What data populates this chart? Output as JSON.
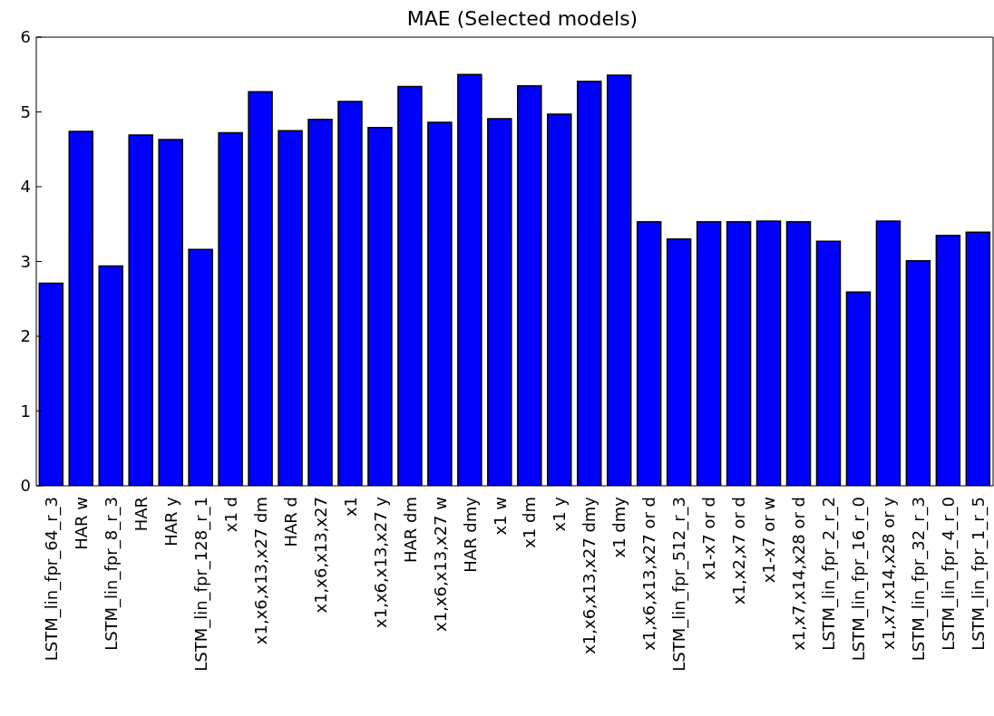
{
  "chart_data": {
    "type": "bar",
    "title": "MAE (Selected models)",
    "categories": [
      "LSTM_lin_fpr_64_r_3",
      "HAR w",
      "LSTM_lin_fpr_8_r_3",
      "HAR",
      "HAR y",
      "LSTM_lin_fpr_128_r_1",
      "x1 d",
      "x1,x6,x13,x27 dm",
      "HAR d",
      "x1,x6,x13,x27",
      "x1",
      "x1,x6,x13,x27 y",
      "HAR dm",
      "x1,x6,x13,x27 w",
      "HAR dmy",
      "x1 w",
      "x1 dm",
      "x1 y",
      "x1,x6,x13,x27 dmy",
      "x1 dmy",
      "x1,x6,x13,x27 or d",
      "LSTM_lin_fpr_512_r_3",
      "x1-x7 or d",
      "x1,x2,x7 or d",
      "x1-x7 or w",
      "x1,x7,x14,x28 or d",
      "LSTM_lin_fpr_2_r_2",
      "LSTM_lin_fpr_16_r_0",
      "x1,x7,x14,x28 or y",
      "LSTM_lin_fpr_32_r_3",
      "LSTM_lin_fpr_4_r_0",
      "LSTM_lin_fpr_1_r_5"
    ],
    "values": [
      2.71,
      4.74,
      2.94,
      4.69,
      4.63,
      3.16,
      4.72,
      5.27,
      4.75,
      4.9,
      5.14,
      4.79,
      5.34,
      4.86,
      5.5,
      4.91,
      5.35,
      4.97,
      5.41,
      5.49,
      3.53,
      3.3,
      3.53,
      3.53,
      3.54,
      3.53,
      3.27,
      2.59,
      3.54,
      3.01,
      3.35,
      3.39
    ],
    "color": "#0000ff",
    "ylim": [
      0,
      6
    ],
    "yticks": [
      0,
      1,
      2,
      3,
      4,
      5,
      6
    ]
  }
}
